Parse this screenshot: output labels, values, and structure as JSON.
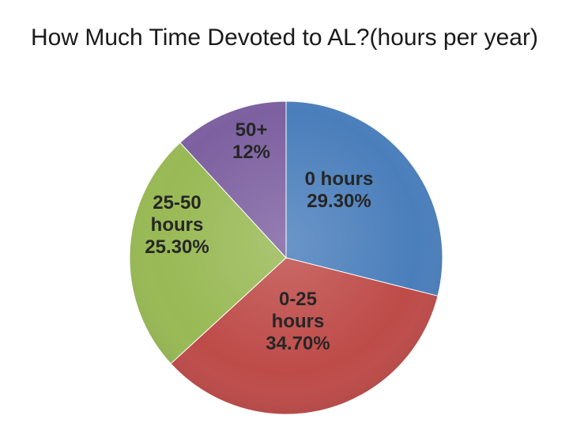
{
  "chart_data": {
    "type": "pie",
    "title": "How Much Time Devoted to AL?(hours per year)",
    "slices": [
      {
        "label": "0 hours",
        "value": 29.3,
        "value_label": "29.30%",
        "color": "#4a7ebb"
      },
      {
        "label": "0-25 hours",
        "value": 34.7,
        "value_label": "34.70%",
        "color": "#be4b48"
      },
      {
        "label": "25-50 hours",
        "value": 25.3,
        "value_label": "25.30%",
        "color": "#98b954"
      },
      {
        "label": "50+",
        "value": 12,
        "value_label": "12%",
        "color": "#7d60a0"
      }
    ],
    "start_angle": "12 o'clock",
    "direction": "clockwise",
    "legend": "none",
    "data_labels": "inside slices"
  }
}
